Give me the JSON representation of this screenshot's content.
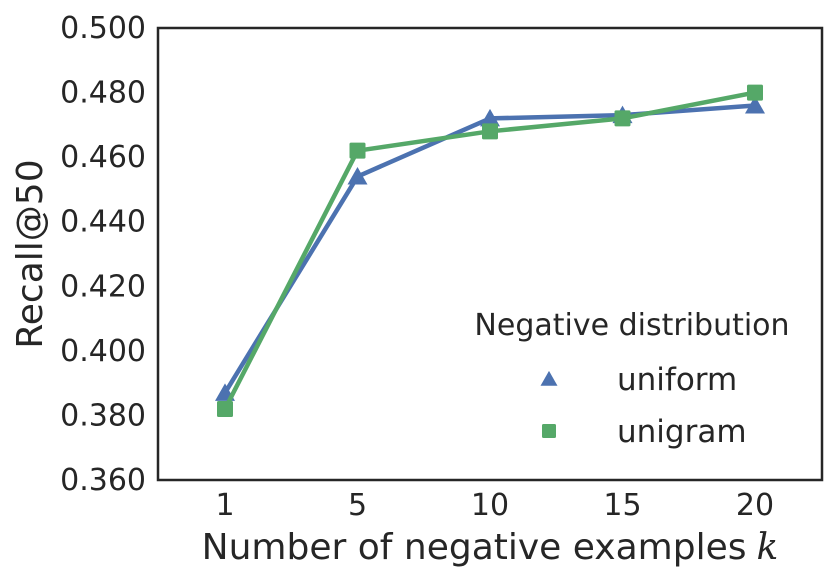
{
  "chart_data": {
    "type": "line",
    "title": "",
    "ylabel": "Recall@50",
    "xlabel": {
      "text": "Number of negative examples",
      "math_var": "k"
    },
    "x_categories": [
      "1",
      "5",
      "10",
      "15",
      "20"
    ],
    "x_values": [
      1,
      5,
      10,
      15,
      20
    ],
    "x_scale": "categorical-even-spacing",
    "y_ticks": [
      "0.360",
      "0.380",
      "0.400",
      "0.420",
      "0.440",
      "0.460",
      "0.480",
      "0.500"
    ],
    "ylim": [
      0.36,
      0.5
    ],
    "grid": false,
    "frame": "all-four-sides",
    "legend": {
      "title": "Negative distribution",
      "location": "inside-lower-right",
      "frame": false,
      "entries": [
        {
          "label": "uniform",
          "marker": "triangle-up",
          "color": "#4C72B0"
        },
        {
          "label": "unigram",
          "marker": "square",
          "color": "#55A868"
        }
      ]
    },
    "series": [
      {
        "name": "uniform",
        "marker": "triangle-up",
        "color": "#4C72B0",
        "values": [
          0.387,
          0.454,
          0.472,
          0.473,
          0.476
        ]
      },
      {
        "name": "unigram",
        "marker": "square",
        "color": "#55A868",
        "values": [
          0.382,
          0.462,
          0.468,
          0.472,
          0.48
        ]
      }
    ],
    "colors": {
      "axis_frame": "#262626",
      "text": "#262626",
      "background": "#ffffff",
      "series_uniform": "#4C72B0",
      "series_unigram": "#55A868"
    }
  }
}
